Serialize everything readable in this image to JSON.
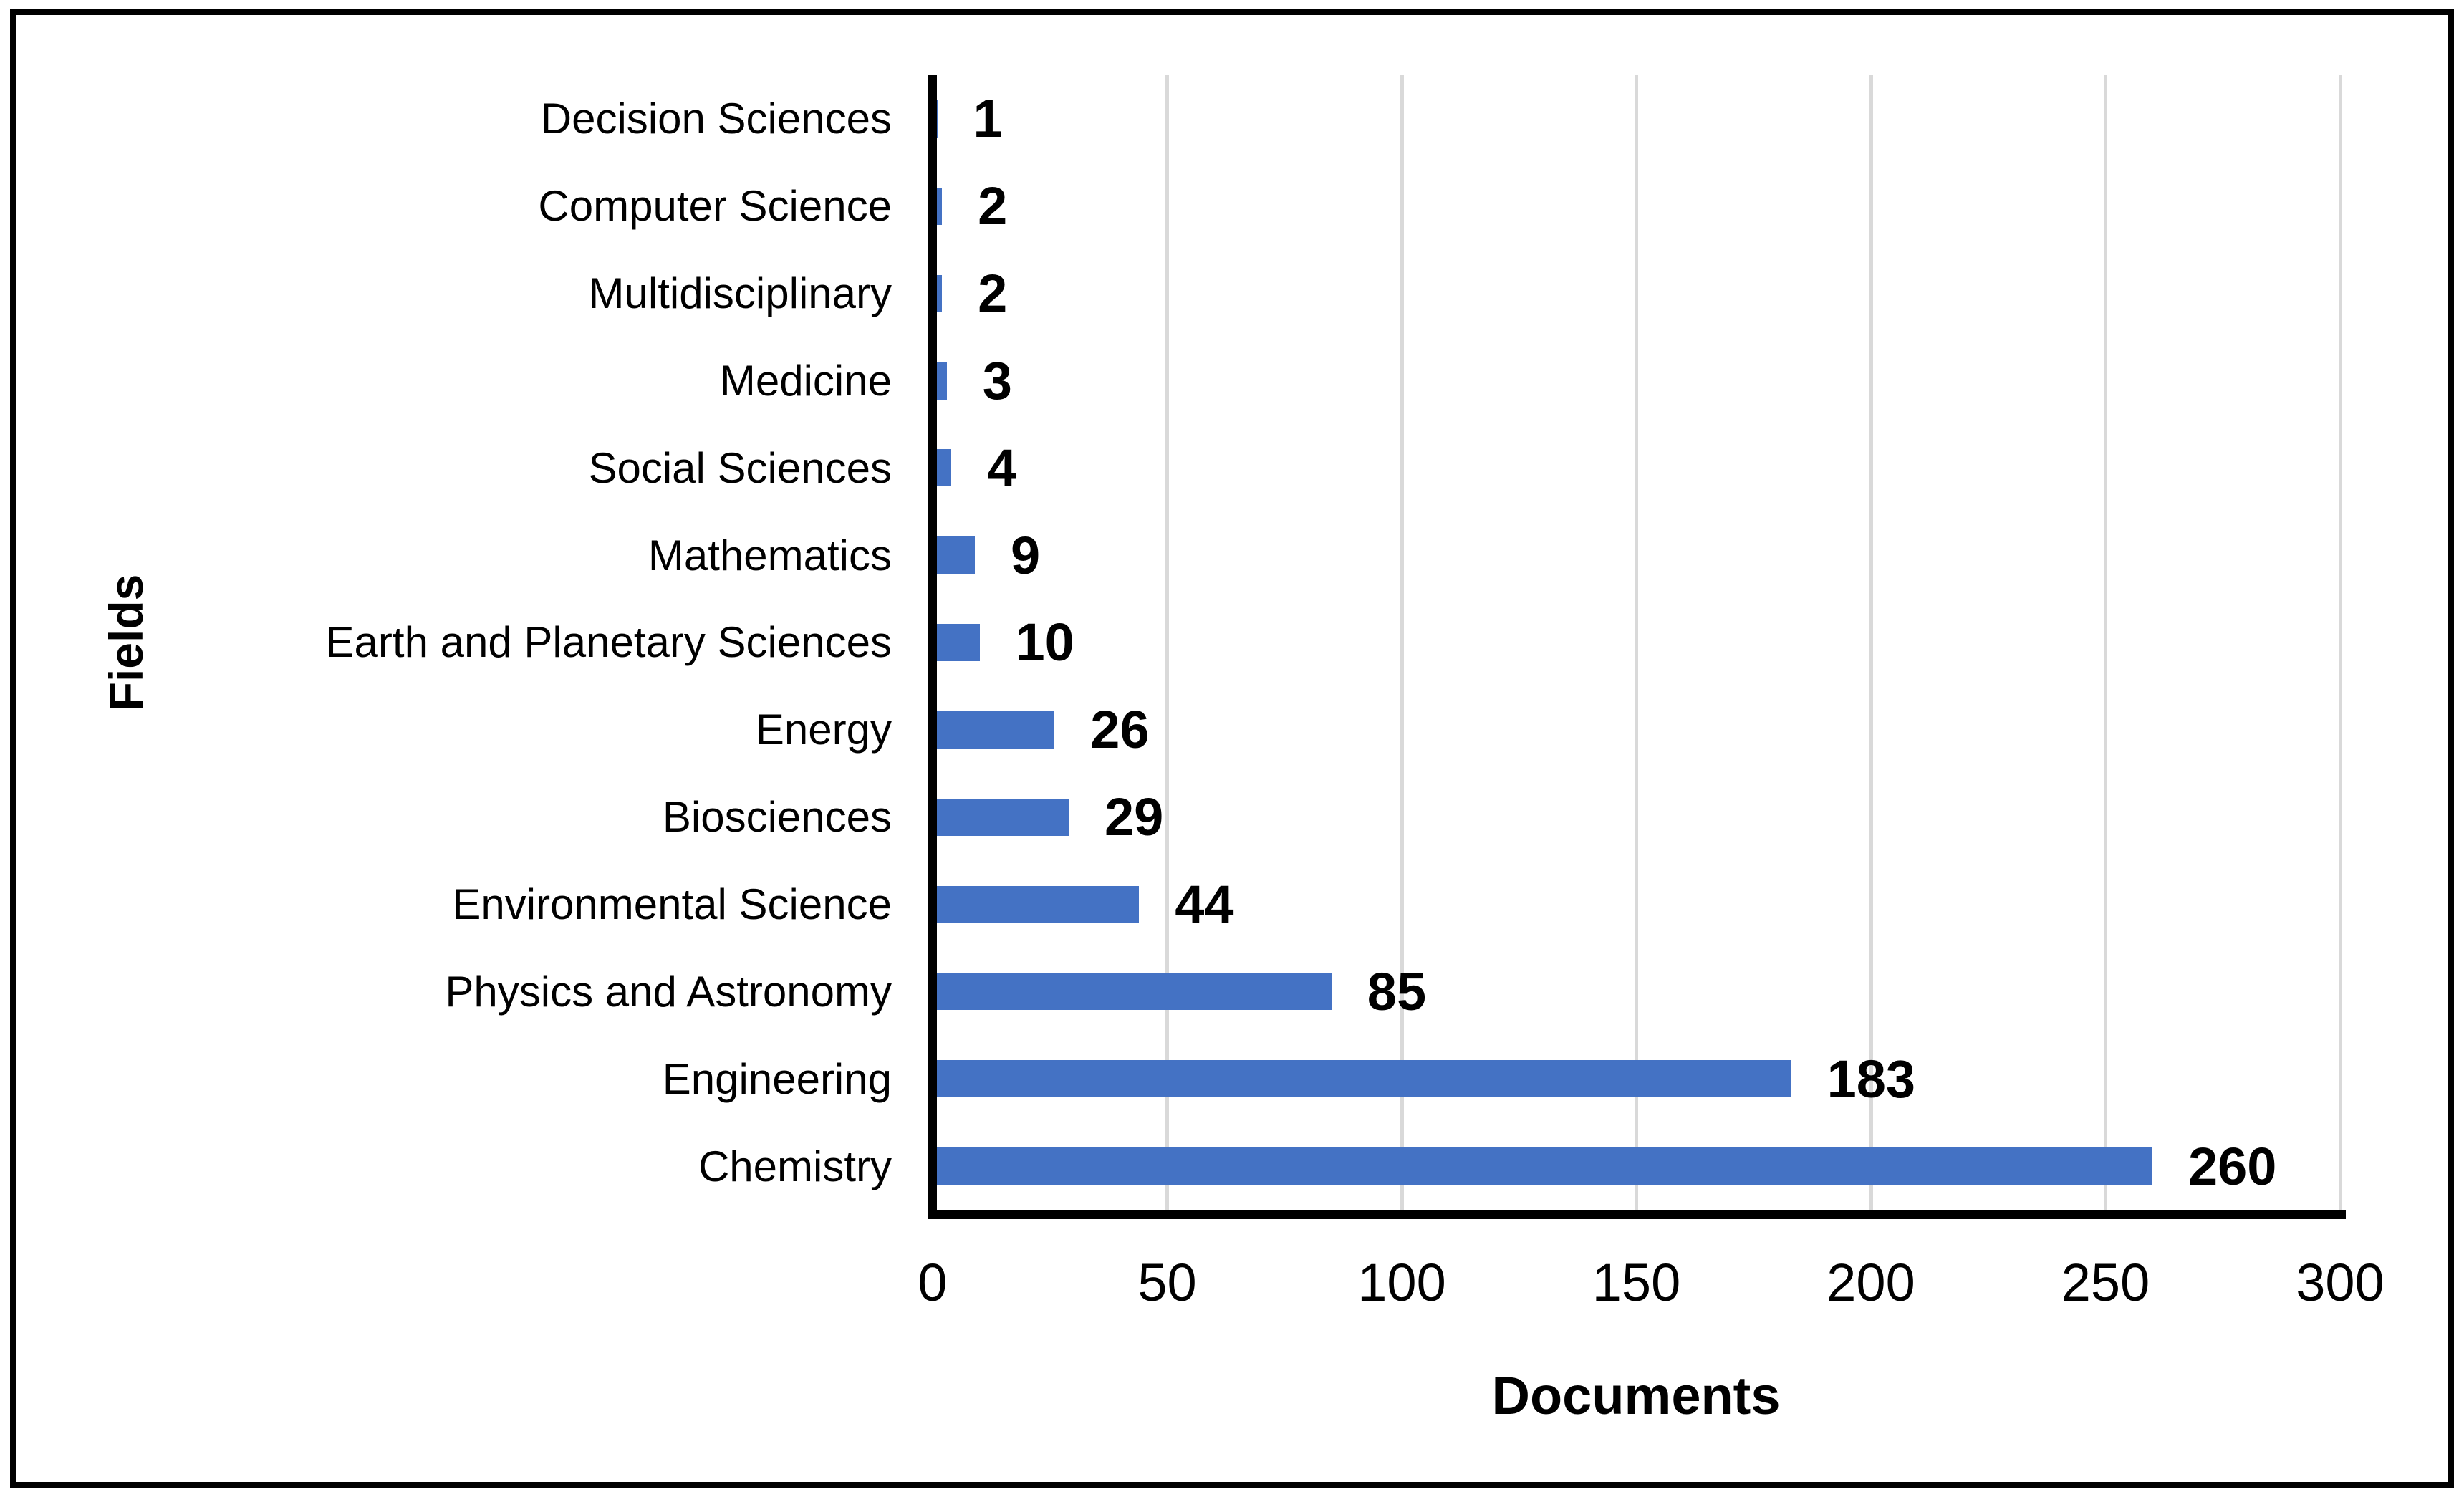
{
  "chart_data": {
    "type": "bar",
    "orientation": "horizontal",
    "title": "",
    "xlabel": "Documents",
    "ylabel": "Fields",
    "categories": [
      "Decision Sciences",
      "Computer Science",
      "Multidisciplinary",
      "Medicine",
      "Social Sciences",
      "Mathematics",
      "Earth and Planetary Sciences",
      "Energy",
      "Biosciences",
      "Environmental Science",
      "Physics and Astronomy",
      "Engineering",
      "Chemistry"
    ],
    "values": [
      1,
      2,
      2,
      3,
      4,
      9,
      10,
      26,
      29,
      44,
      85,
      183,
      260
    ],
    "xlim": [
      0,
      300
    ],
    "x_ticks": [
      "0",
      "50",
      "100",
      "150",
      "200",
      "250",
      "300"
    ],
    "grid": true,
    "legend": "none",
    "data_labels": true,
    "colors": {
      "bar": "#4472C4",
      "gridline": "#D9D9D9",
      "axis": "#000000",
      "text": "#000000",
      "background": "#ffffff"
    }
  }
}
